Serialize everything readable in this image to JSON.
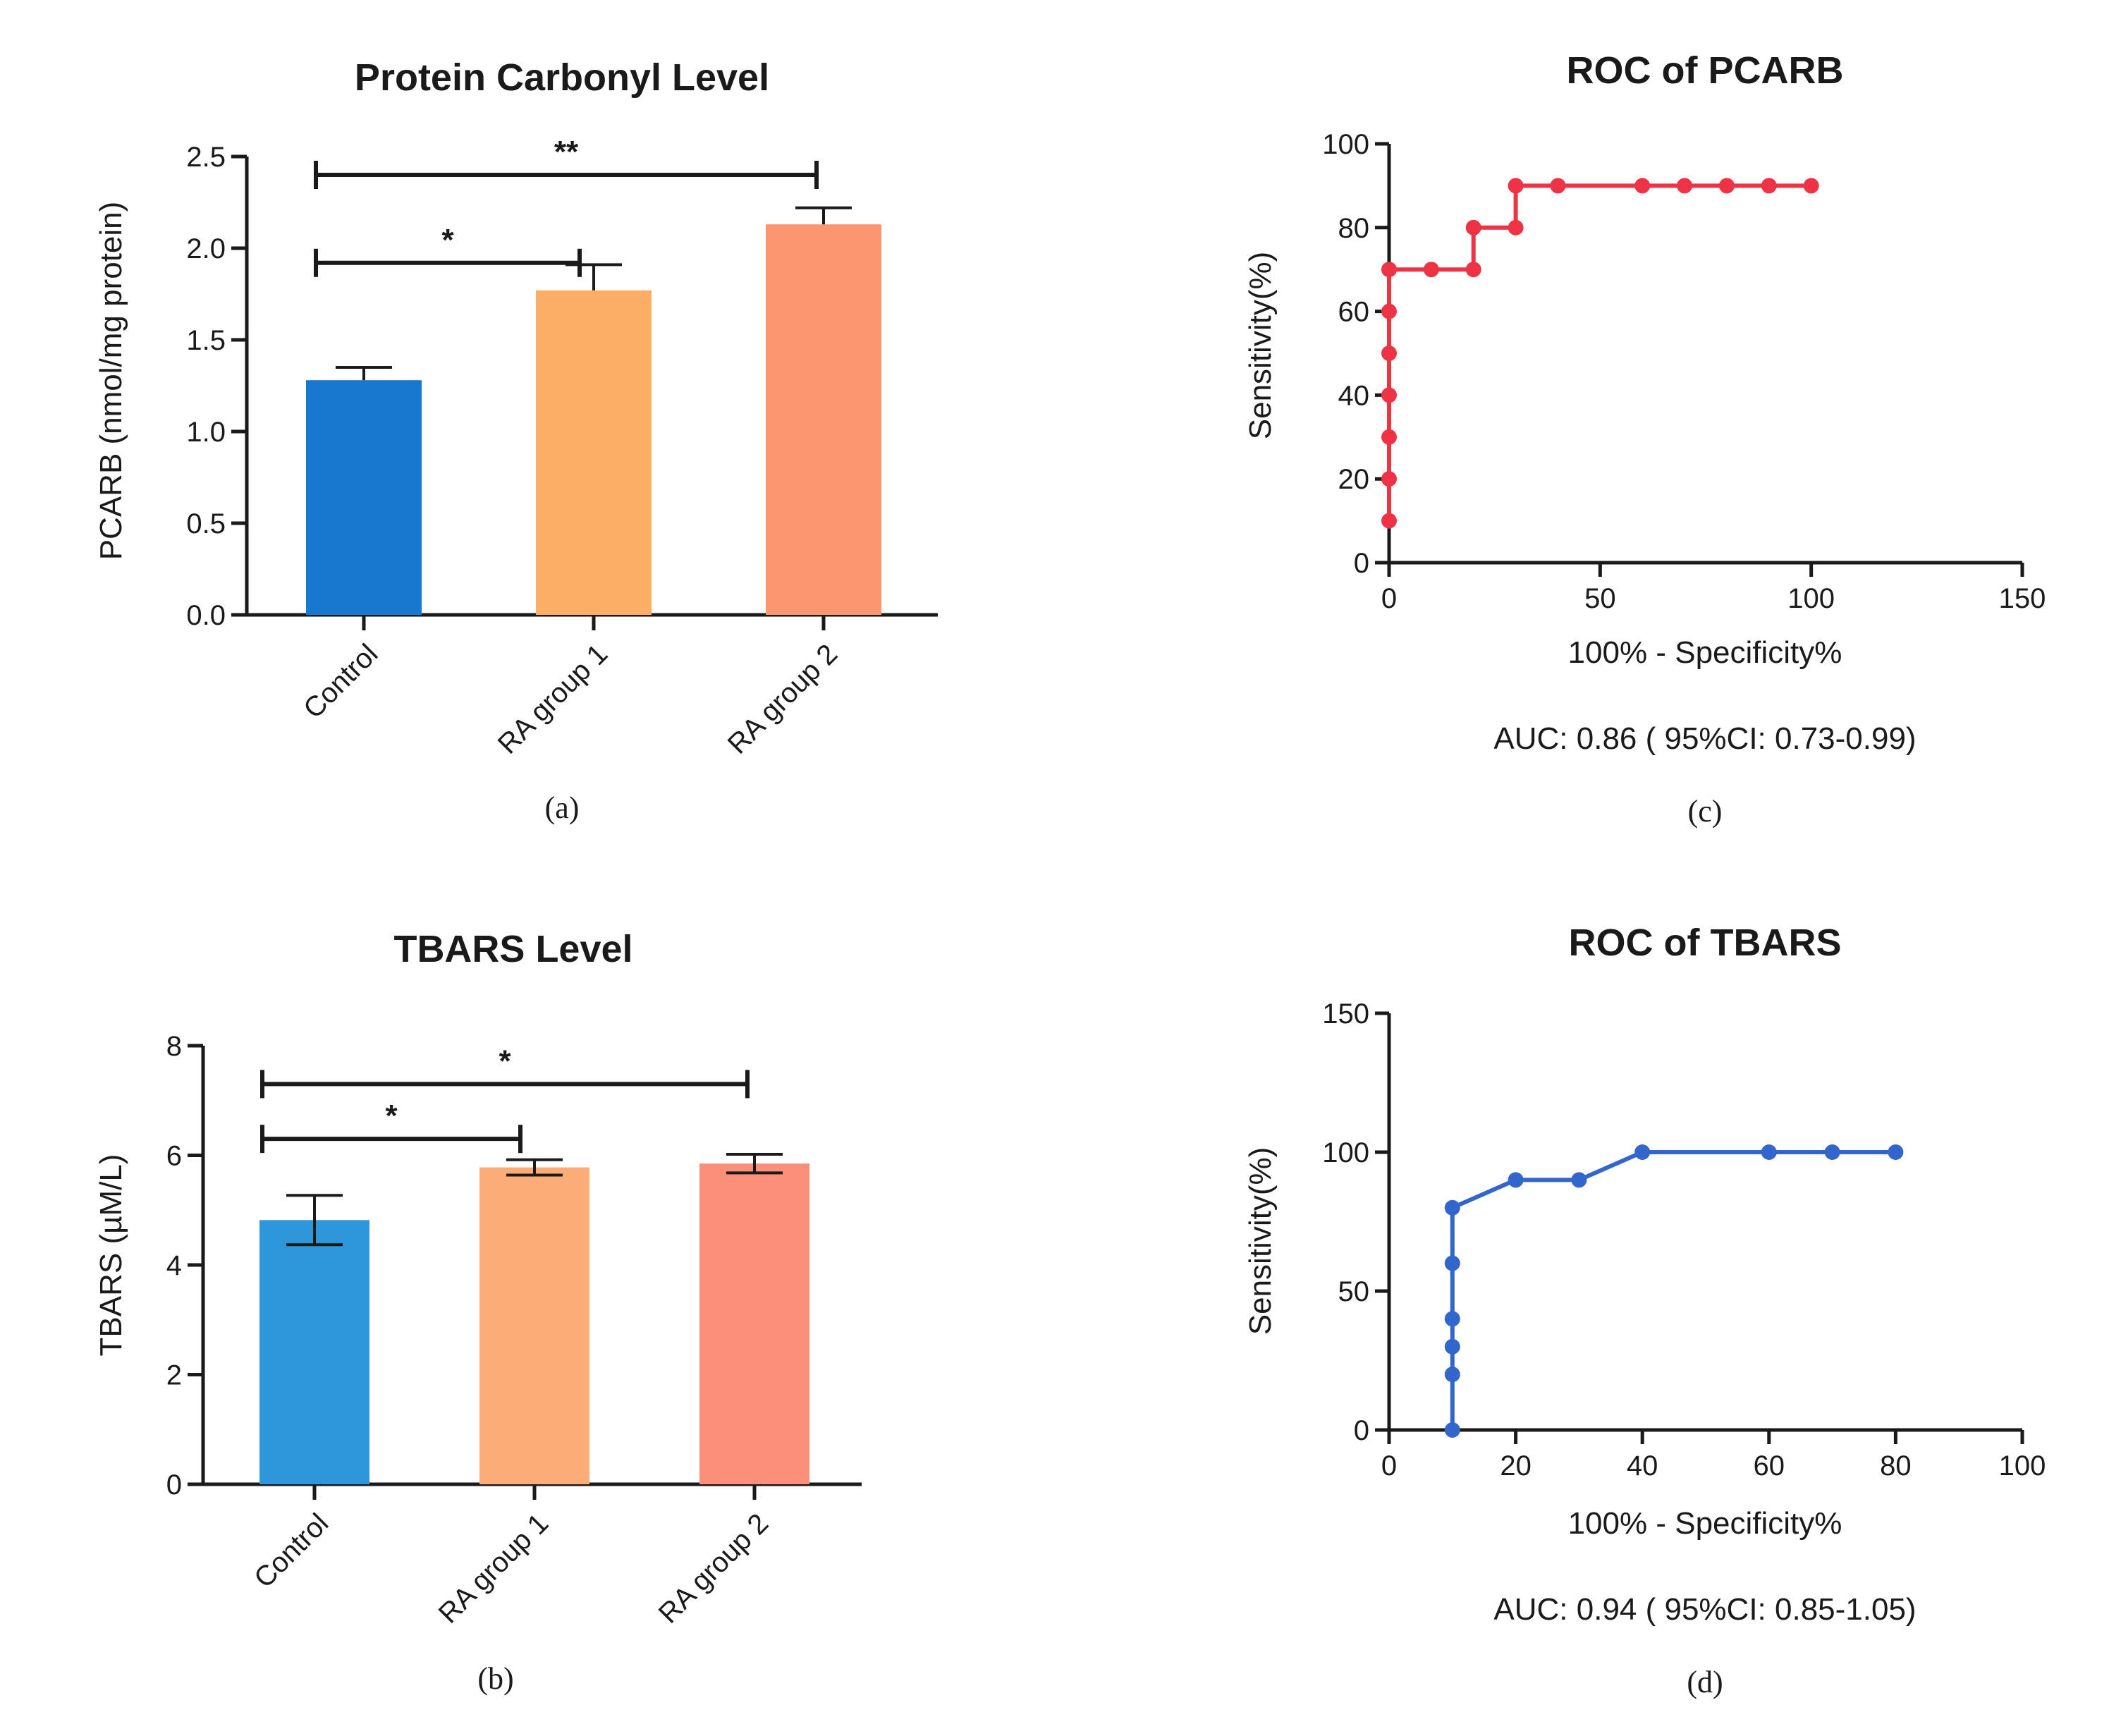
{
  "chart_data": [
    {
      "id": "a",
      "type": "bar",
      "title": "Protein Carbonyl Level",
      "ylabel": "PCARB (nmol/mg protein)",
      "panel_label": "(a)",
      "categories": [
        "Control",
        "RA group 1",
        "RA group 2"
      ],
      "values": [
        1.28,
        1.77,
        2.13
      ],
      "errors": [
        0.07,
        0.14,
        0.09
      ],
      "colors": [
        "#1878cf",
        "#fcae67",
        "#fc9670"
      ],
      "ylim": [
        0,
        2.5
      ],
      "yticks": [
        "0.0",
        "0.5",
        "1.0",
        "1.5",
        "2.0",
        "2.5"
      ],
      "significance": [
        {
          "from": 0,
          "to": 1,
          "y": 1.92,
          "label": "*"
        },
        {
          "from": 0,
          "to": 2,
          "y": 2.4,
          "label": "**"
        }
      ]
    },
    {
      "id": "b",
      "type": "bar",
      "title": "TBARS Level",
      "ylabel": "TBARS (µM/L)",
      "panel_label": "(b)",
      "categories": [
        "Control",
        "RA group 1",
        "RA group 2"
      ],
      "values": [
        4.82,
        5.78,
        5.85
      ],
      "errors": [
        0.45,
        0.14,
        0.17
      ],
      "colors": [
        "#2e97db",
        "#fcad77",
        "#fc8f7a"
      ],
      "ylim": [
        0,
        8
      ],
      "yticks": [
        "0",
        "2",
        "4",
        "6",
        "8"
      ],
      "significance": [
        {
          "from": 0,
          "to": 1,
          "y": 6.3,
          "label": "*"
        },
        {
          "from": 0,
          "to": 2,
          "y": 7.3,
          "label": "*"
        }
      ]
    },
    {
      "id": "c",
      "type": "line",
      "title": "ROC of PCARB",
      "xlabel": "100% - Specificity%",
      "ylabel": "Sensitivity(%)",
      "panel_label": "(c)",
      "annotation": "AUC: 0.86 ( 95%CI: 0.73-0.99)",
      "color": "#ee3344",
      "xlim": [
        0,
        150
      ],
      "ylim": [
        0,
        100
      ],
      "xticks": [
        "0",
        "50",
        "100",
        "150"
      ],
      "yticks": [
        "0",
        "20",
        "40",
        "60",
        "80",
        "100"
      ],
      "x": [
        0,
        0,
        0,
        0,
        0,
        0,
        0,
        10,
        20,
        20,
        30,
        30,
        40,
        60,
        70,
        80,
        90,
        100
      ],
      "y": [
        10,
        20,
        30,
        40,
        50,
        60,
        70,
        70,
        70,
        80,
        80,
        90,
        90,
        90,
        90,
        90,
        90,
        90
      ]
    },
    {
      "id": "d",
      "type": "line",
      "title": "ROC of TBARS",
      "xlabel": "100% - Specificity%",
      "ylabel": "Sensitivity(%)",
      "panel_label": "(d)",
      "annotation": "AUC: 0.94 ( 95%CI: 0.85-1.05)",
      "color": "#3366cc",
      "xlim": [
        0,
        100
      ],
      "ylim": [
        0,
        150
      ],
      "xticks": [
        "0",
        "20",
        "40",
        "60",
        "80",
        "100"
      ],
      "yticks": [
        "0",
        "50",
        "100",
        "150"
      ],
      "x": [
        10,
        10,
        10,
        10,
        10,
        10,
        20,
        30,
        40,
        60,
        70,
        80
      ],
      "y": [
        0,
        20,
        30,
        40,
        60,
        80,
        90,
        90,
        100,
        100,
        100,
        100
      ]
    }
  ]
}
